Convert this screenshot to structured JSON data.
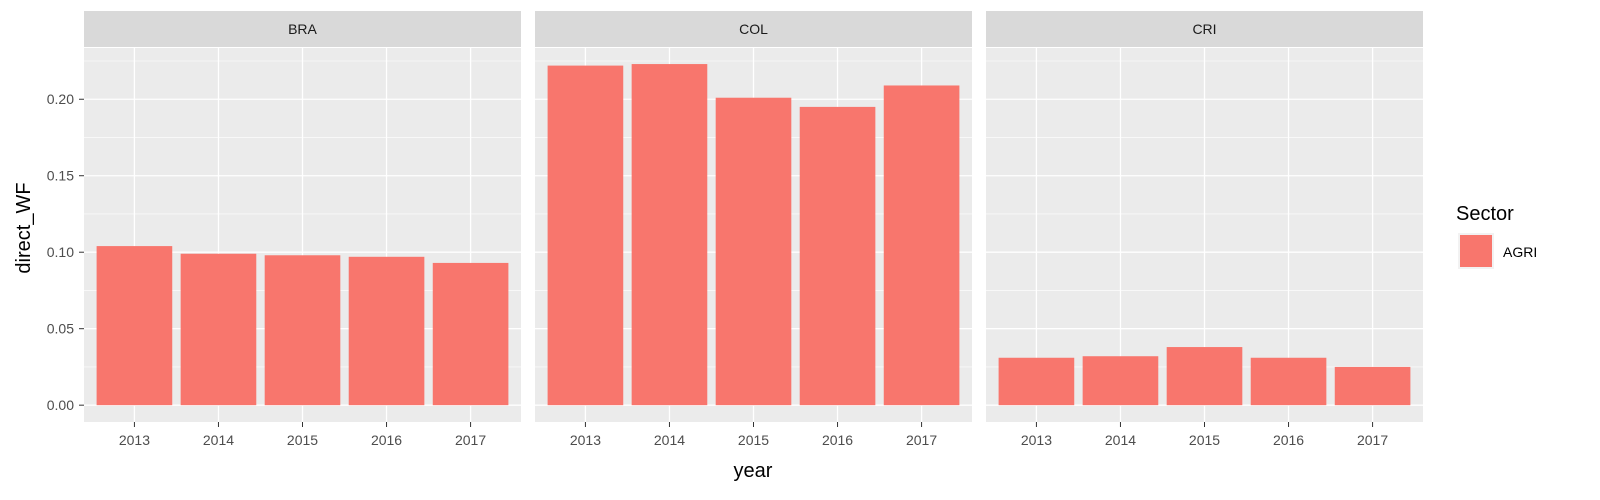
{
  "chart_data": {
    "type": "bar",
    "xlabel": "year",
    "ylabel": "direct_WF",
    "ylim": [
      -0.011,
      0.2335
    ],
    "yticks": [
      "0.00",
      "0.05",
      "0.10",
      "0.15",
      "0.20"
    ],
    "ytick_values": [
      0,
      0.05,
      0.1,
      0.15,
      0.2
    ],
    "grid": true,
    "legend": {
      "title": "Sector",
      "position": "right",
      "entries": [
        {
          "label": "AGRI",
          "color": "#F8766D"
        }
      ]
    },
    "panels": [
      {
        "name": "BRA",
        "categories": [
          "2013",
          "2014",
          "2015",
          "2016",
          "2017"
        ],
        "values": [
          0.104,
          0.099,
          0.098,
          0.097,
          0.093
        ]
      },
      {
        "name": "COL",
        "categories": [
          "2013",
          "2014",
          "2015",
          "2016",
          "2017"
        ],
        "values": [
          0.222,
          0.223,
          0.201,
          0.195,
          0.209
        ]
      },
      {
        "name": "CRI",
        "categories": [
          "2013",
          "2014",
          "2015",
          "2016",
          "2017"
        ],
        "values": [
          0.031,
          0.032,
          0.038,
          0.031,
          0.025
        ]
      }
    ]
  },
  "colors": {
    "bar": "#F8766D",
    "panel_bg": "#EBEBEB",
    "strip_bg": "#D9D9D9",
    "grid": "#FFFFFF"
  }
}
